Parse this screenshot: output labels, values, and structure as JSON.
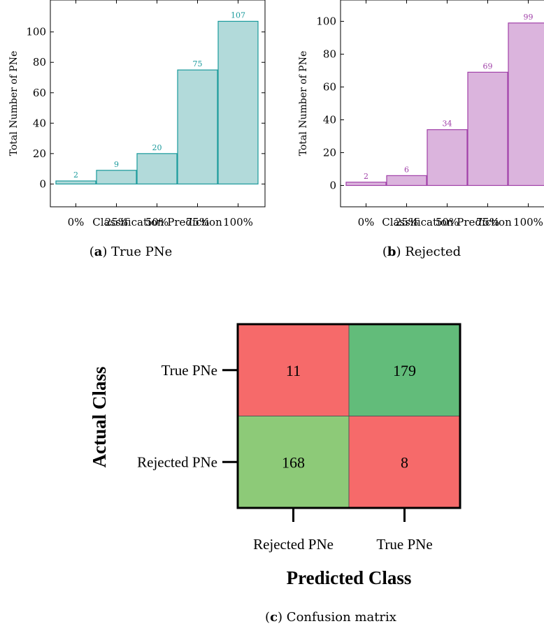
{
  "chart_data": [
    {
      "type": "bar",
      "categories": [
        "0%",
        "25%",
        "50%",
        "75%",
        "100%"
      ],
      "values": [
        2,
        9,
        20,
        75,
        107
      ],
      "xlabel": "Classification Prediction",
      "ylabel": "Total Number of PNe",
      "ylim": [
        -15,
        121
      ],
      "yticks": [
        0,
        20,
        40,
        60,
        80,
        100
      ],
      "caption_letter": "a",
      "caption_text": ") True PNe",
      "caption_open": "(",
      "fill": "#b2dada",
      "stroke": "#1a9a9c",
      "label_color": "#1a9a9c",
      "grid": false
    },
    {
      "type": "bar",
      "categories": [
        "0%",
        "25%",
        "50%",
        "75%",
        "100%"
      ],
      "values": [
        2,
        6,
        34,
        69,
        99
      ],
      "xlabel": "Classification Prediction",
      "ylabel": "Total Number of PNe",
      "ylim": [
        -13,
        113
      ],
      "yticks": [
        0,
        20,
        40,
        60,
        80,
        100
      ],
      "caption_letter": "b",
      "caption_text": ") Rejected",
      "caption_open": "(",
      "fill": "#dbb4dd",
      "stroke": "#a040a8",
      "label_color": "#a040a8",
      "grid": false
    },
    {
      "type": "heatmap",
      "xlabel": "Predicted Class",
      "ylabel": "Actual Class",
      "x_categories": [
        "Rejected PNe",
        "True PNe"
      ],
      "y_categories": [
        "True PNe",
        "Rejected PNe"
      ],
      "cells": [
        [
          11,
          179
        ],
        [
          168,
          8
        ]
      ],
      "cell_colors": [
        [
          "#f66a6a",
          "#62bc7a"
        ],
        [
          "#8dca78",
          "#f66a6a"
        ]
      ],
      "caption_letter": "c",
      "caption_text": ") Confusion matrix",
      "caption_open": "("
    }
  ]
}
